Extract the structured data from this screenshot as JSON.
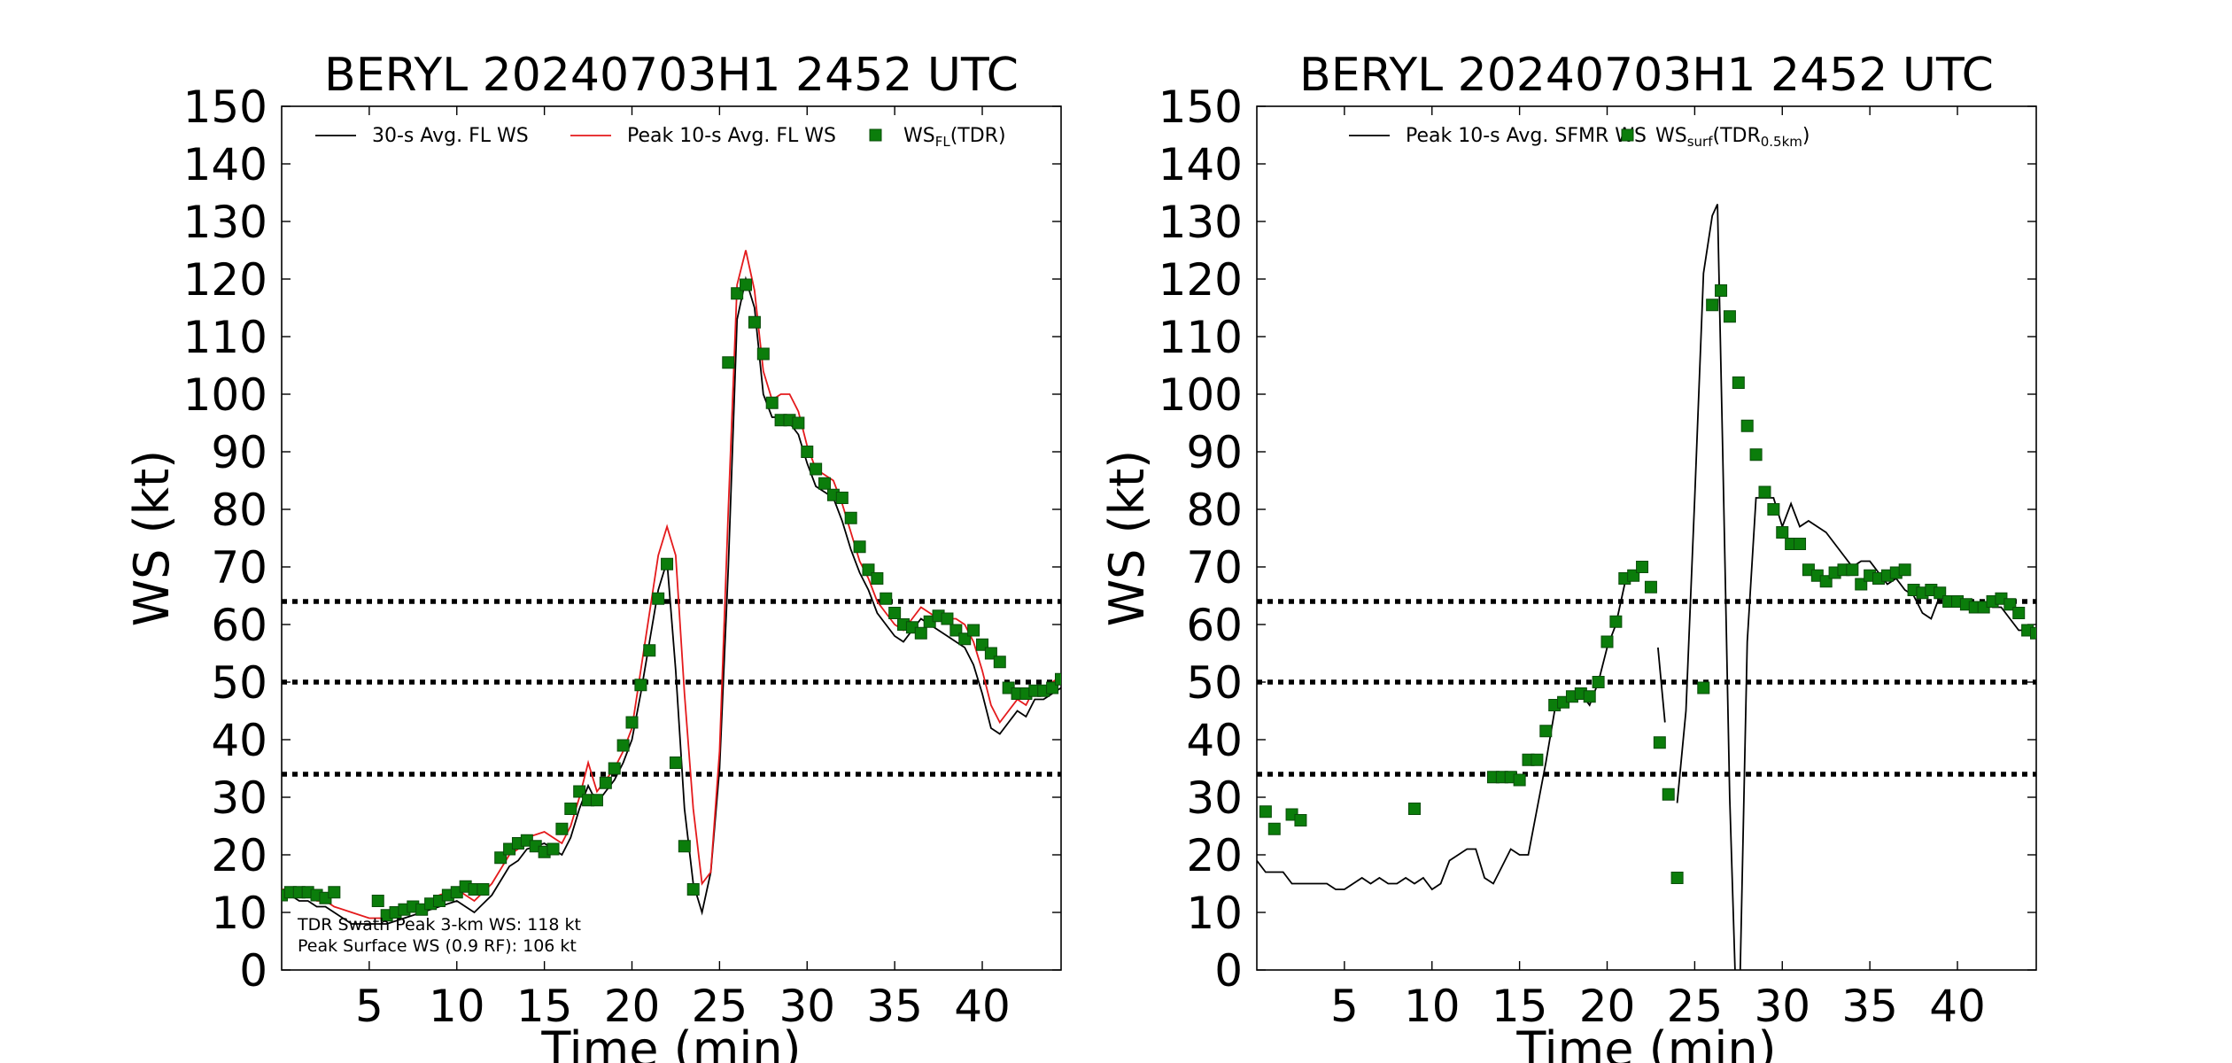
{
  "chart_data": [
    {
      "type": "line",
      "title": "BERYL 20240703H1 2452 UTC",
      "xlabel": "Time (min)",
      "ylabel": "WS (kt)",
      "xlim": [
        0,
        44.5
      ],
      "ylim": [
        0,
        150
      ],
      "xticks": [
        "5",
        "10",
        "15",
        "20",
        "25",
        "30",
        "35",
        "40"
      ],
      "yticks": [
        "0",
        "10",
        "20",
        "30",
        "40",
        "50",
        "60",
        "70",
        "80",
        "90",
        "100",
        "110",
        "120",
        "130",
        "140",
        "150"
      ],
      "reference_lines": [
        34,
        50,
        64
      ],
      "legend_location": "top",
      "annotation": [
        "TDR Swath Peak 3-km WS: 118 kt",
        "Peak Surface WS (0.9 RF): 106 kt"
      ],
      "series": [
        {
          "name": "30-s Avg. FL WS",
          "label_main": "30-s Avg. FL WS",
          "color": "#000000",
          "kind": "line",
          "x": [
            0,
            0.5,
            1,
            1.5,
            2,
            2.5,
            3,
            4,
            5,
            6,
            7,
            8,
            9,
            10,
            10.5,
            11,
            12,
            13,
            13.5,
            14,
            15,
            15.5,
            16,
            16.5,
            17,
            17.5,
            18,
            18.5,
            19,
            19.5,
            20,
            20.5,
            21,
            21.5,
            22,
            22.5,
            23,
            23.5,
            24,
            24.5,
            25,
            25.5,
            26,
            26.5,
            27,
            27.5,
            28,
            28.5,
            29,
            29.5,
            30,
            30.5,
            31,
            31.5,
            32,
            32.5,
            33,
            33.5,
            34,
            34.5,
            35,
            35.5,
            36,
            36.5,
            37,
            37.5,
            38,
            38.5,
            39,
            39.5,
            40,
            40.5,
            41,
            41.5,
            42,
            42.5,
            43,
            43.5,
            44,
            44.5
          ],
          "y": [
            13,
            13,
            12,
            12,
            11,
            11,
            10,
            8,
            8,
            8,
            9,
            10,
            11,
            12,
            11,
            10,
            13,
            18,
            19,
            21,
            22,
            21,
            20,
            23,
            28,
            32,
            29,
            31,
            33,
            36,
            40,
            48,
            57,
            66,
            71,
            52,
            28,
            15,
            10,
            17,
            35,
            70,
            113,
            120,
            115,
            100,
            96,
            96,
            95,
            93,
            88,
            84,
            83,
            82,
            78,
            73,
            69,
            66,
            62,
            60,
            58,
            57,
            59,
            61,
            60,
            59,
            58,
            57,
            56,
            53,
            48,
            42,
            41,
            43,
            45,
            44,
            47,
            47,
            48,
            49
          ]
        },
        {
          "name": "Peak 10-s Avg. FL WS",
          "label_main": "Peak 10-s Avg. FL WS",
          "color": "#e41a1c",
          "kind": "line",
          "x": [
            0,
            0.5,
            1,
            1.5,
            2,
            2.5,
            3,
            4,
            5,
            6,
            7,
            8,
            9,
            10,
            10.5,
            11,
            12,
            13,
            13.5,
            14,
            15,
            15.5,
            16,
            16.5,
            17,
            17.5,
            18,
            18.5,
            19,
            19.5,
            20,
            20.5,
            21,
            21.5,
            22,
            22.5,
            23,
            23.5,
            24,
            24.5,
            25,
            25.5,
            26,
            26.5,
            27,
            27.5,
            28,
            28.5,
            29,
            29.5,
            30,
            30.5,
            31,
            31.5,
            32,
            32.5,
            33,
            33.5,
            34,
            34.5,
            35,
            35.5,
            36,
            36.5,
            37,
            37.5,
            38,
            38.5,
            39,
            39.5,
            40,
            40.5,
            41,
            41.5,
            42,
            42.5,
            43,
            43.5,
            44,
            44.5
          ],
          "y": [
            14,
            14,
            13,
            13,
            12,
            12,
            11,
            10,
            9,
            9,
            10,
            11,
            13,
            14,
            13,
            12,
            15,
            20,
            21,
            23,
            24,
            23,
            22,
            25,
            30,
            36,
            31,
            33,
            35,
            38,
            42,
            52,
            62,
            72,
            77,
            72,
            48,
            28,
            15,
            17,
            38,
            80,
            119,
            125,
            118,
            104,
            99,
            100,
            100,
            97,
            91,
            87,
            86,
            85,
            81,
            76,
            71,
            68,
            64,
            62,
            60,
            59,
            61,
            63,
            62,
            61,
            61,
            61,
            60,
            57,
            52,
            46,
            43,
            45,
            47,
            46,
            49,
            49,
            50,
            51
          ]
        },
        {
          "name": "WSFL(TDR)",
          "label_main": "WS",
          "label_sub": "FL",
          "label_suffix": "(TDR)",
          "color": "#0b7d0b",
          "kind": "marker",
          "x": [
            0,
            0.5,
            1,
            1.5,
            2,
            2.5,
            3,
            5.5,
            6,
            6.5,
            7,
            7.5,
            8,
            8.5,
            9,
            9.5,
            10,
            10.5,
            11,
            11.5,
            12.5,
            13,
            13.5,
            14,
            14.5,
            15,
            15.5,
            16,
            16.5,
            17,
            17.5,
            18,
            18.5,
            19,
            19.5,
            20,
            20.5,
            21,
            21.5,
            22,
            22.5,
            23,
            23.5,
            25.5,
            26,
            26.5,
            27,
            27.5,
            28,
            28.5,
            29,
            29.5,
            30,
            30.5,
            31,
            31.5,
            32,
            32.5,
            33,
            33.5,
            34,
            34.5,
            35,
            35.5,
            36,
            36.5,
            37,
            37.5,
            38,
            38.5,
            39,
            39.5,
            40,
            40.5,
            41,
            41.5,
            42,
            42.5,
            43,
            43.5,
            44,
            44.5
          ],
          "y": [
            13,
            13.5,
            13.5,
            13.5,
            13,
            12.5,
            13.5,
            12,
            9.5,
            10,
            10.5,
            11,
            10.5,
            11.5,
            12,
            13,
            13.5,
            14.5,
            14,
            14,
            19.5,
            21,
            22,
            22.5,
            21.5,
            20.5,
            21,
            24.5,
            28,
            31,
            29.5,
            29.5,
            32.5,
            35,
            39,
            43,
            49.5,
            55.5,
            64.5,
            70.5,
            36,
            21.5,
            14,
            105.5,
            117.5,
            119,
            112.5,
            107,
            98.5,
            95.5,
            95.5,
            95,
            90,
            87,
            84.5,
            82.5,
            82,
            78.5,
            73.5,
            69.5,
            68,
            64.5,
            62,
            60,
            59.5,
            58.5,
            60.5,
            61.5,
            61,
            59,
            57.5,
            59,
            56.5,
            55,
            53.5,
            49,
            48,
            48,
            48.5,
            48.5,
            49,
            50.5
          ]
        }
      ]
    },
    {
      "type": "line",
      "title": "BERYL 20240703H1 2452 UTC",
      "xlabel": "Time (min)",
      "ylabel": "WS (kt)",
      "xlim": [
        0,
        44.5
      ],
      "ylim": [
        0,
        150
      ],
      "xticks": [
        "5",
        "10",
        "15",
        "20",
        "25",
        "30",
        "35",
        "40"
      ],
      "yticks": [
        "0",
        "10",
        "20",
        "30",
        "40",
        "50",
        "60",
        "70",
        "80",
        "90",
        "100",
        "110",
        "120",
        "130",
        "140",
        "150"
      ],
      "reference_lines": [
        34,
        50,
        64
      ],
      "legend_location": "top",
      "series": [
        {
          "name": "Peak 10-s Avg. SFMR WS",
          "label_main": "Peak 10-s Avg. SFMR WS",
          "color": "#000000",
          "kind": "line",
          "segments": [
            {
              "x": [
                0,
                0.5,
                1,
                1.5,
                2,
                2.5,
                3,
                3.5,
                4,
                4.5,
                5,
                5.5,
                6,
                6.5,
                7,
                7.5,
                8,
                8.5,
                9,
                9.5,
                10,
                10.5,
                11,
                11.5,
                12,
                12.5,
                13,
                13.5,
                14,
                14.5,
                15,
                15.5,
                16,
                16.5,
                17,
                17.5,
                18,
                18.5,
                19,
                19.5,
                20,
                20.5,
                21
              ],
              "y": [
                19,
                17,
                17,
                17,
                15,
                15,
                15,
                15,
                15,
                14,
                14,
                15,
                16,
                15,
                16,
                15,
                15,
                16,
                15,
                16,
                14,
                15,
                19,
                20,
                21,
                21,
                16,
                15,
                18,
                21,
                20,
                20,
                28,
                36,
                45,
                46,
                47,
                48,
                46,
                50,
                56,
                60,
                67
              ]
            },
            {
              "x": [
                22.9,
                23.3
              ],
              "y": [
                56,
                43
              ]
            },
            {
              "x": [
                24,
                24.5,
                25,
                25.5,
                26,
                26.3,
                26.6,
                27,
                27.3
              ],
              "y": [
                29,
                45,
                82,
                121,
                131,
                133,
                90,
                30,
                0
              ]
            },
            {
              "x": [
                27.6,
                28,
                28.5,
                29,
                29.5,
                30,
                30.5,
                31,
                31.5,
                32,
                32.5,
                33,
                33.5,
                34,
                34.5,
                35,
                35.5,
                36,
                36.5,
                37,
                37.5,
                38,
                38.5,
                39,
                39.5,
                40,
                40.5,
                41,
                41.5,
                42,
                42.5,
                43,
                43.5,
                44,
                44.5
              ],
              "y": [
                0,
                57,
                82,
                82,
                82,
                77,
                81,
                77,
                78,
                77,
                76,
                74,
                72,
                70,
                71,
                71,
                69,
                67,
                68,
                66,
                65,
                62,
                61,
                65,
                64,
                64,
                63,
                63,
                64,
                63,
                63,
                61,
                59,
                59,
                58
              ]
            }
          ]
        },
        {
          "name": "WSsurf(TDR0.5km)",
          "label_main": "WS",
          "label_sub": "surf",
          "label_mid": "(TDR",
          "label_sub2": "0.5km",
          "label_suffix": ")",
          "color": "#0b7d0b",
          "kind": "marker",
          "x": [
            0.5,
            1,
            2,
            2.5,
            9,
            13.5,
            14,
            14.5,
            15,
            15.5,
            16,
            16.5,
            17,
            17.5,
            18,
            18.5,
            19,
            19.5,
            20,
            20.5,
            21,
            21.5,
            22,
            22.5,
            23,
            23.5,
            24,
            25.5,
            26,
            26.5,
            27,
            27.5,
            28,
            28.5,
            29,
            29.5,
            30,
            30.5,
            31,
            31.5,
            32,
            32.5,
            33,
            33.5,
            34,
            34.5,
            35,
            35.5,
            36,
            36.5,
            37,
            37.5,
            38,
            38.5,
            39,
            39.5,
            40,
            40.5,
            41,
            41.5,
            42,
            42.5,
            43,
            43.5,
            44,
            44.5
          ],
          "y": [
            27.5,
            24.5,
            27,
            26,
            28,
            33.5,
            33.5,
            33.5,
            33,
            36.5,
            36.5,
            41.5,
            46,
            46.5,
            47.5,
            48,
            47.5,
            50,
            57,
            60.5,
            68,
            68.5,
            70,
            66.5,
            39.5,
            30.5,
            16,
            49,
            115.5,
            118,
            113.5,
            102,
            94.5,
            89.5,
            83,
            80,
            76,
            74,
            74,
            69.5,
            68.5,
            67.5,
            69,
            69.5,
            69.5,
            67,
            68.5,
            68,
            68.5,
            69,
            69.5,
            66,
            65.5,
            66,
            65.5,
            64,
            64,
            63.5,
            63,
            63,
            64,
            64.5,
            63.5,
            62,
            59,
            58.5
          ]
        }
      ]
    }
  ]
}
